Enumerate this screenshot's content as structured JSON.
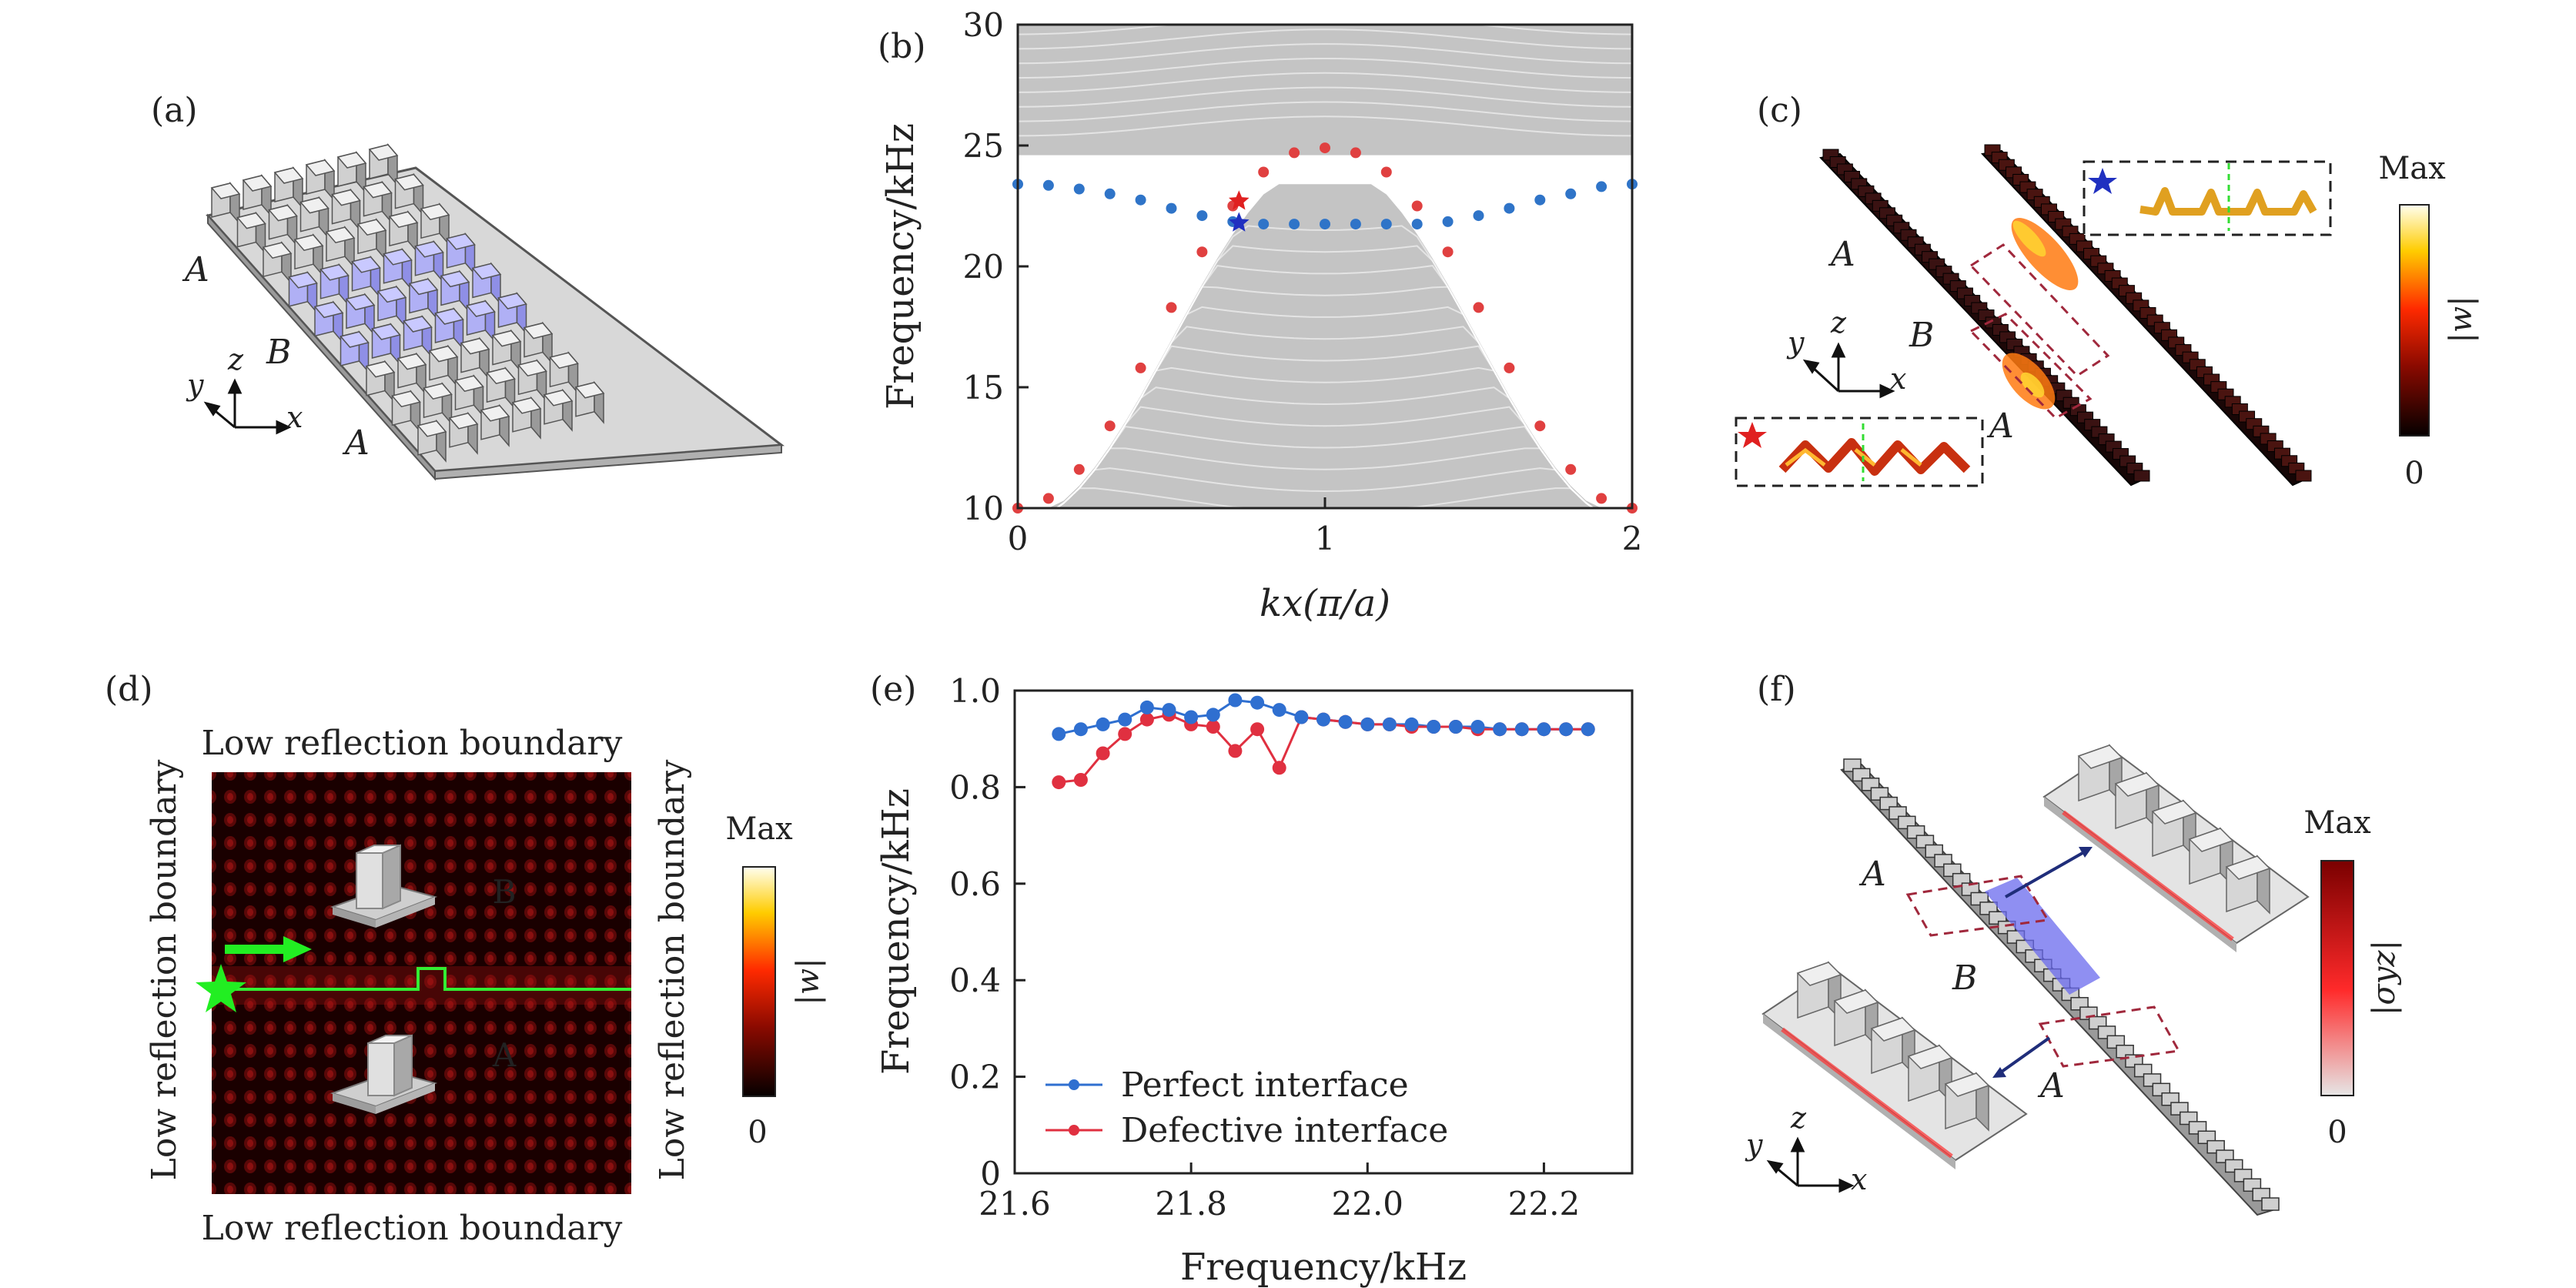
{
  "panels": {
    "a": {
      "label": "(a)",
      "region_labels": [
        "A",
        "B",
        "A"
      ],
      "axes_triad": {
        "x": "x",
        "y": "y",
        "z": "z"
      }
    },
    "b": {
      "label": "(b)"
    },
    "c": {
      "label": "(c)",
      "region_labels": [
        "A",
        "B",
        "A"
      ],
      "axes_triad": {
        "x": "x",
        "y": "y",
        "z": "z"
      },
      "colorbar": {
        "max": "Max",
        "min": "0",
        "quantity": "|w|"
      }
    },
    "d": {
      "label": "(d)",
      "boundary_top": "Low reflection boundary",
      "boundary_bottom": "Low reflection boundary",
      "boundary_left": "Low reflection boundary",
      "boundary_right": "Low reflection boundary",
      "region_upper": "B",
      "region_lower": "A",
      "colorbar": {
        "max": "Max",
        "min": "0",
        "quantity": "|w|"
      }
    },
    "e": {
      "label": "(e)"
    },
    "f": {
      "label": "(f)",
      "region_labels": [
        "A",
        "B",
        "A"
      ],
      "axes_triad": {
        "x": "x",
        "y": "y",
        "z": "z"
      },
      "colorbar": {
        "max": "Max",
        "min": "0",
        "quantity": "|σyz|"
      }
    }
  },
  "chart_data": [
    {
      "panel": "b",
      "type": "scatter",
      "xlabel": "kx(π/a)",
      "ylabel": "Frequency/kHz",
      "xlim": [
        0,
        2
      ],
      "ylim": [
        10,
        30
      ],
      "xticks": [
        "0",
        "1",
        "2"
      ],
      "yticks": [
        "10",
        "15",
        "20",
        "25",
        "30"
      ],
      "series": [
        {
          "role": "interface-band-blue",
          "color": "#2f74c8",
          "x": [
            0,
            0.1,
            0.2,
            0.3,
            0.4,
            0.5,
            0.6,
            0.7,
            0.8,
            0.9,
            1.0,
            1.1,
            1.2,
            1.3,
            1.4,
            1.5,
            1.6,
            1.7,
            1.8,
            1.9,
            2.0
          ],
          "y": [
            23.4,
            23.35,
            23.2,
            23.0,
            22.75,
            22.4,
            22.1,
            21.85,
            21.75,
            21.75,
            21.75,
            21.75,
            21.75,
            21.75,
            21.85,
            22.1,
            22.4,
            22.75,
            23.0,
            23.3,
            23.4
          ]
        },
        {
          "role": "interface-band-red",
          "color": "#e04040",
          "x": [
            0,
            0.1,
            0.2,
            0.3,
            0.4,
            0.5,
            0.6,
            0.7,
            0.8,
            0.9,
            1.0,
            1.1,
            1.2,
            1.3,
            1.4,
            1.5,
            1.6,
            1.7,
            1.8,
            1.9,
            2.0
          ],
          "y": [
            10.0,
            10.4,
            11.6,
            13.4,
            15.8,
            18.3,
            20.6,
            22.5,
            23.9,
            24.7,
            24.9,
            24.7,
            23.9,
            22.5,
            20.6,
            18.3,
            15.8,
            13.4,
            11.6,
            10.4,
            10.0
          ]
        }
      ],
      "bulk_bands": {
        "color": "#c4c4c4",
        "upper_from": 24.6,
        "upper_to": 30,
        "lower_from": 10,
        "lower_to": 23.4
      },
      "markers": [
        {
          "shape": "star",
          "color": "#e02020",
          "x": 0.72,
          "y": 22.7
        },
        {
          "shape": "star",
          "color": "#2030c0",
          "x": 0.72,
          "y": 21.8
        }
      ]
    },
    {
      "panel": "e",
      "type": "line",
      "xlabel": "Frequency/kHz",
      "ylabel": "Frequency/kHz",
      "xlim": [
        21.6,
        22.3
      ],
      "ylim": [
        0,
        1.0
      ],
      "xticks": [
        "21.6",
        "21.8",
        "22.0",
        "22.2"
      ],
      "yticks": [
        "0",
        "0.2",
        "0.4",
        "0.6",
        "0.8",
        "1.0"
      ],
      "legend_position": "bottom-left",
      "series": [
        {
          "name": "Perfect interface",
          "color": "#2f6fd0",
          "x": [
            21.65,
            21.675,
            21.7,
            21.725,
            21.75,
            21.775,
            21.8,
            21.825,
            21.85,
            21.875,
            21.9,
            21.925,
            21.95,
            21.975,
            22.0,
            22.025,
            22.05,
            22.075,
            22.1,
            22.125,
            22.15,
            22.175,
            22.2,
            22.225,
            22.25
          ],
          "y": [
            0.91,
            0.92,
            0.93,
            0.94,
            0.965,
            0.96,
            0.945,
            0.95,
            0.98,
            0.975,
            0.96,
            0.945,
            0.94,
            0.935,
            0.93,
            0.93,
            0.93,
            0.925,
            0.925,
            0.925,
            0.92,
            0.92,
            0.92,
            0.92,
            0.92
          ]
        },
        {
          "name": "Defective interface",
          "color": "#e03040",
          "x": [
            21.65,
            21.675,
            21.7,
            21.725,
            21.75,
            21.775,
            21.8,
            21.825,
            21.85,
            21.875,
            21.9,
            21.925,
            21.95,
            21.975,
            22.0,
            22.025,
            22.05,
            22.075,
            22.1,
            22.125,
            22.15,
            22.175,
            22.2,
            22.225,
            22.25
          ],
          "y": [
            0.81,
            0.815,
            0.87,
            0.91,
            0.94,
            0.95,
            0.93,
            0.925,
            0.875,
            0.92,
            0.84,
            0.945,
            0.94,
            0.935,
            0.93,
            0.93,
            0.925,
            0.925,
            0.925,
            0.92,
            0.92,
            0.92,
            0.92,
            0.92,
            0.92
          ]
        }
      ]
    }
  ]
}
